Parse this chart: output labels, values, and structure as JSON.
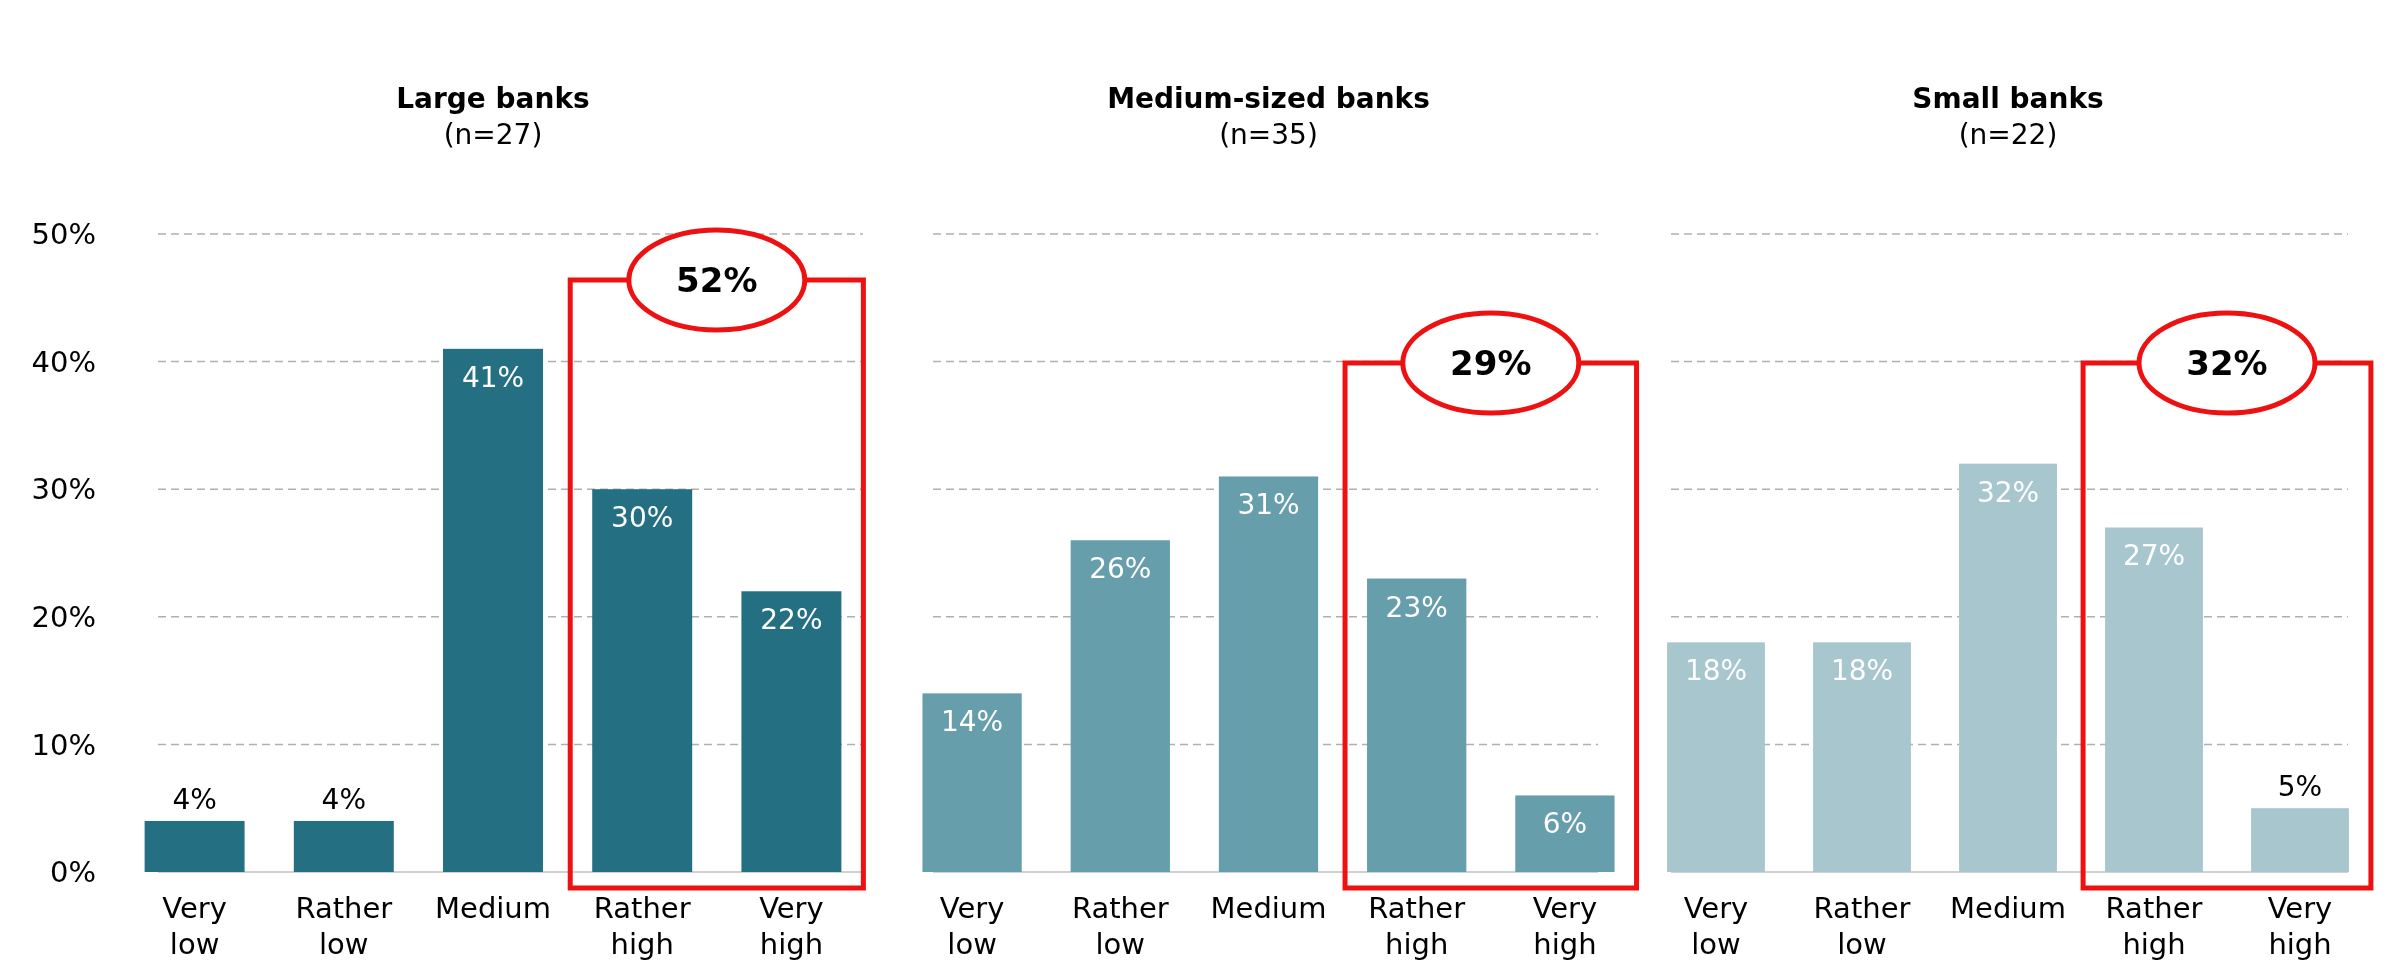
{
  "chart_data": [
    {
      "type": "bar",
      "title": "Large banks",
      "subtitle": "(n=27)",
      "categories": [
        "Very low",
        "Rather low",
        "Medium",
        "Rather high",
        "Very high"
      ],
      "values": [
        4,
        4,
        41,
        30,
        22
      ],
      "value_labels": [
        "4%",
        "4%",
        "41%",
        "30%",
        "22%"
      ],
      "color": "#246f82",
      "ylim": [
        0,
        50
      ],
      "yticks": [
        {
          "value": 0,
          "label": "0%"
        },
        {
          "value": 10,
          "label": "10%"
        },
        {
          "value": 20,
          "label": "20%"
        },
        {
          "value": 30,
          "label": "30%"
        },
        {
          "value": 40,
          "label": "40%"
        },
        {
          "value": 50,
          "label": "50%"
        }
      ],
      "grid": "y",
      "annotations": [
        "52%"
      ]
    },
    {
      "type": "bar",
      "title": "Medium-sized banks",
      "subtitle": "(n=35)",
      "categories": [
        "Very low",
        "Rather low",
        "Medium",
        "Rather high",
        "Very high"
      ],
      "values": [
        14,
        26,
        31,
        23,
        6
      ],
      "value_labels": [
        "14%",
        "26%",
        "31%",
        "23%",
        "6%"
      ],
      "color": "#669eab",
      "ylim": [
        0,
        50
      ],
      "yticks": [
        0,
        10,
        20,
        30,
        40,
        50
      ],
      "grid": "y",
      "tick_labels": "x",
      "annotations": [
        "29%"
      ]
    },
    {
      "type": "bar",
      "title": "Small banks",
      "subtitle": "(n=22)",
      "categories": [
        "Very low",
        "Rather low",
        "Medium",
        "Rather high",
        "Very high"
      ],
      "values": [
        18,
        18,
        32,
        27,
        5
      ],
      "value_labels": [
        "18%",
        "18%",
        "32%",
        "27%",
        "5%"
      ],
      "color": "#a7c6cd",
      "ylim": [
        0,
        50
      ],
      "yticks": [
        0,
        10,
        20,
        30,
        40,
        50
      ],
      "grid": "y",
      "tick_labels": "x",
      "annotations": [
        "32%"
      ]
    }
  ]
}
